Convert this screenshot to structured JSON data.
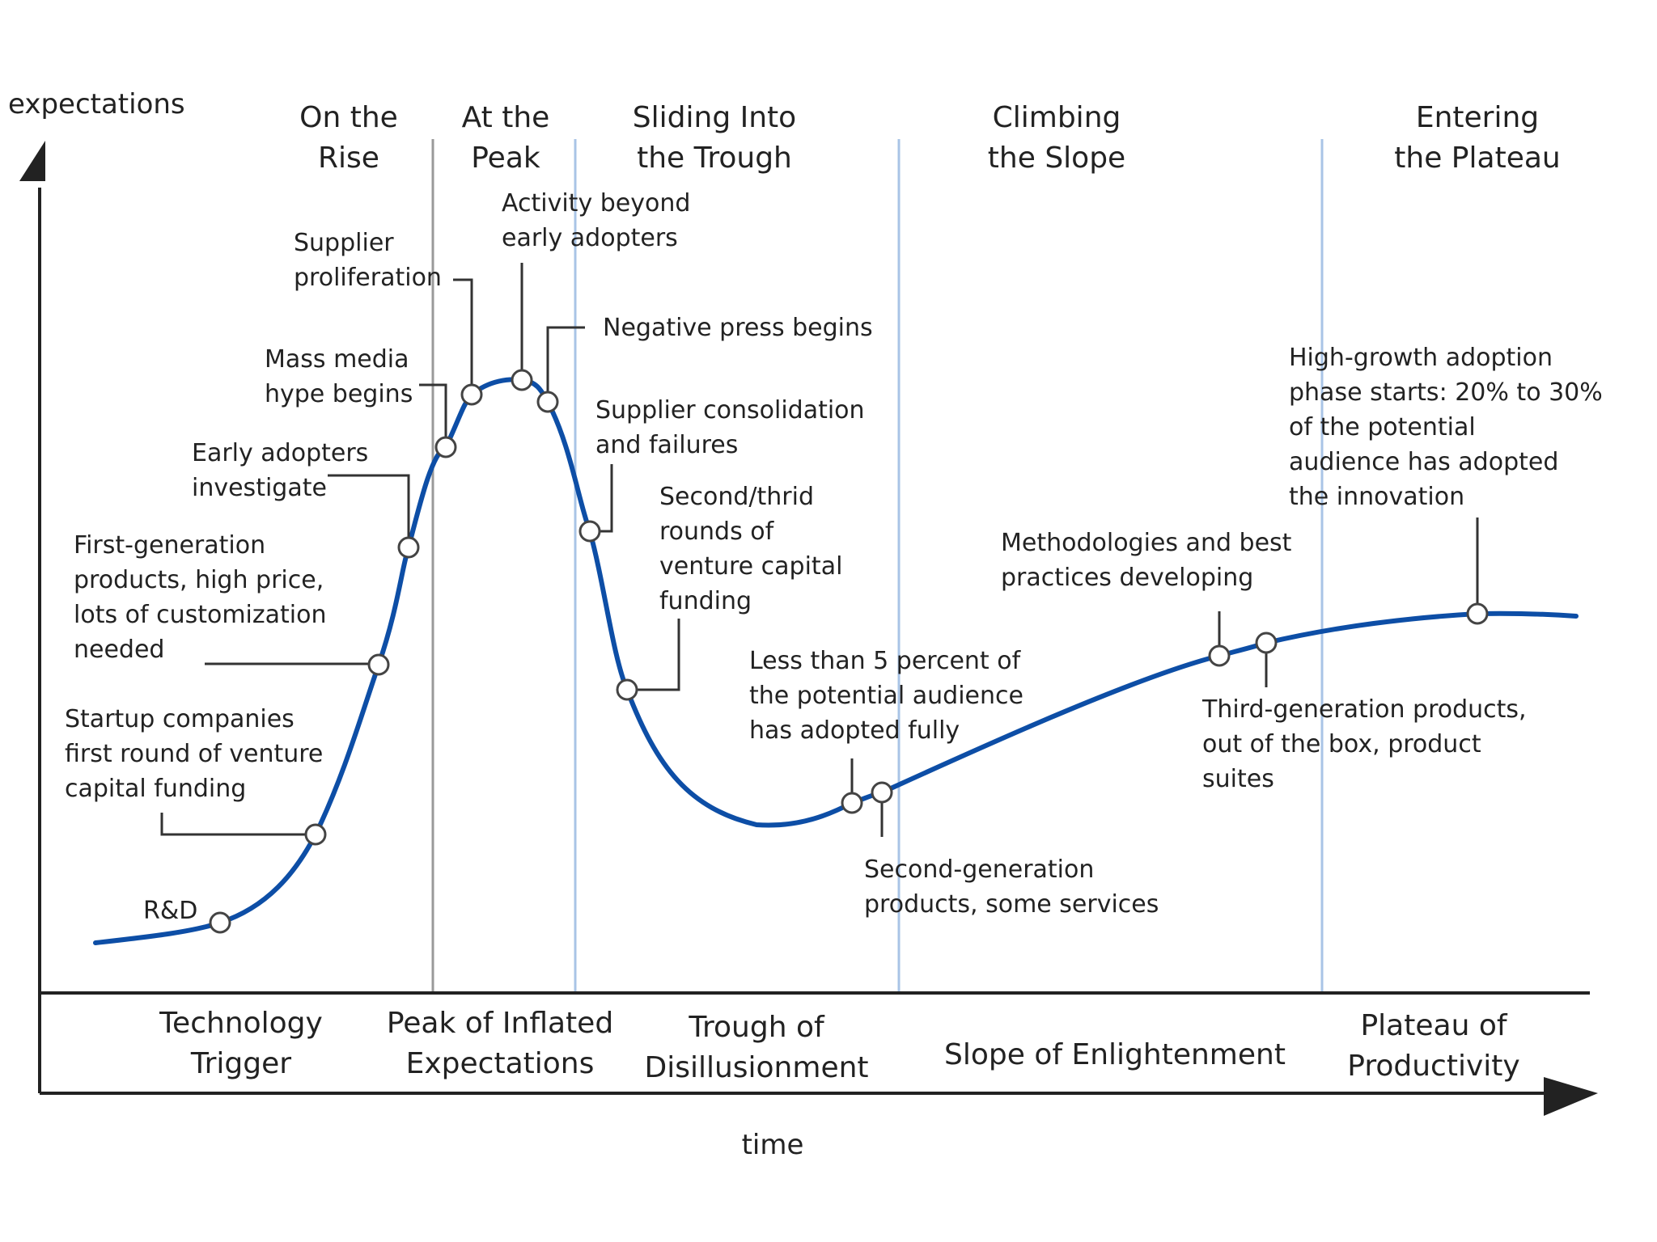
{
  "colors": {
    "curve": "#0d4ea6",
    "divider_blue": "#a9c4e6",
    "divider_gray": "#9a9a9a",
    "axis": "#222222",
    "leader": "#333333",
    "text": "#222222",
    "marker_fill": "#ffffff"
  },
  "axes": {
    "y_label": "expectations",
    "x_label": "time"
  },
  "phases": [
    {
      "lines": [
        "On the",
        "Rise"
      ]
    },
    {
      "lines": [
        "At the",
        "Peak"
      ]
    },
    {
      "lines": [
        "Sliding Into",
        "the Trough"
      ]
    },
    {
      "lines": [
        "Climbing",
        "the Slope"
      ]
    },
    {
      "lines": [
        "Entering",
        "the Plateau"
      ]
    }
  ],
  "stages": [
    {
      "lines": [
        "Technology",
        "Trigger"
      ]
    },
    {
      "lines": [
        "Peak of Inflated",
        "Expectations"
      ]
    },
    {
      "lines": [
        "Trough of",
        "Disillusionment"
      ]
    },
    {
      "lines": [
        "Slope of Enlightenment"
      ]
    },
    {
      "lines": [
        "Plateau of",
        "Productivity"
      ]
    }
  ],
  "milestones": [
    {
      "name": "rd",
      "lines": [
        "R&D"
      ]
    },
    {
      "name": "startup-funding",
      "lines": [
        "Startup companies",
        "first round of venture",
        "capital funding"
      ]
    },
    {
      "name": "first-generation",
      "lines": [
        "First-generation",
        "products, high price,",
        "lots of customization",
        "needed"
      ]
    },
    {
      "name": "early-adopters",
      "lines": [
        "Early adopters",
        "investigate"
      ]
    },
    {
      "name": "mass-media",
      "lines": [
        "Mass media",
        "hype begins"
      ]
    },
    {
      "name": "supplier-proliferation",
      "lines": [
        "Supplier",
        "proliferation"
      ]
    },
    {
      "name": "activity-beyond",
      "lines": [
        "Activity beyond",
        "early adopters"
      ]
    },
    {
      "name": "negative-press",
      "lines": [
        "Negative press begins"
      ]
    },
    {
      "name": "supplier-consolidation",
      "lines": [
        "Supplier consolidation",
        "and failures"
      ]
    },
    {
      "name": "second-third-rounds",
      "lines": [
        "Second/thrid",
        "rounds of",
        "venture capital",
        "funding"
      ]
    },
    {
      "name": "less-than-5-percent",
      "lines": [
        "Less than 5 percent of",
        "the potential audience",
        "has adopted fully"
      ]
    },
    {
      "name": "second-generation",
      "lines": [
        "Second-generation",
        "products, some services"
      ]
    },
    {
      "name": "methodologies",
      "lines": [
        "Methodologies and best",
        "practices developing"
      ]
    },
    {
      "name": "third-generation",
      "lines": [
        "Third-generation products,",
        "out of the box, product",
        "suites"
      ]
    },
    {
      "name": "high-growth",
      "lines": [
        "High-growth adoption",
        "phase starts: 20% to 30%",
        "of the potential",
        "audience has adopted",
        "the innovation"
      ]
    }
  ]
}
